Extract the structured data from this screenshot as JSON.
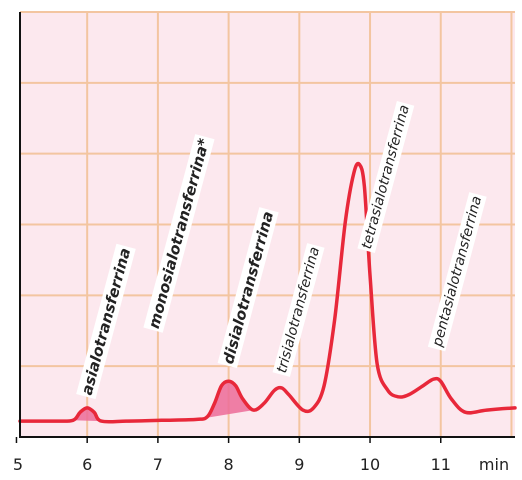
{
  "chart_data": {
    "type": "line",
    "x_unit": "min",
    "x_ticks": [
      "5",
      "6",
      "7",
      "8",
      "9",
      "10",
      "11"
    ],
    "xlim": [
      5,
      12
    ],
    "ylim": [
      0,
      1
    ],
    "grid": true,
    "colors": {
      "background": "#fce8ee",
      "grid": "#f3c5a0",
      "line": "#e8283a",
      "fill": "#ec6b98",
      "axis": "#111111"
    },
    "series": [
      {
        "points": [
          [
            5.0,
            0.02
          ],
          [
            5.5,
            0.02
          ],
          [
            5.75,
            0.022
          ],
          [
            5.85,
            0.04
          ],
          [
            5.95,
            0.05
          ],
          [
            6.05,
            0.04
          ],
          [
            6.15,
            0.02
          ],
          [
            6.5,
            0.02
          ],
          [
            7.0,
            0.022
          ],
          [
            7.5,
            0.024
          ],
          [
            7.65,
            0.03
          ],
          [
            7.75,
            0.06
          ],
          [
            7.85,
            0.1
          ],
          [
            7.95,
            0.11
          ],
          [
            8.05,
            0.1
          ],
          [
            8.15,
            0.07
          ],
          [
            8.3,
            0.045
          ],
          [
            8.45,
            0.06
          ],
          [
            8.6,
            0.09
          ],
          [
            8.7,
            0.095
          ],
          [
            8.8,
            0.08
          ],
          [
            9.0,
            0.045
          ],
          [
            9.15,
            0.05
          ],
          [
            9.3,
            0.1
          ],
          [
            9.45,
            0.25
          ],
          [
            9.6,
            0.47
          ],
          [
            9.72,
            0.58
          ],
          [
            9.8,
            0.6
          ],
          [
            9.87,
            0.55
          ],
          [
            9.95,
            0.35
          ],
          [
            10.05,
            0.15
          ],
          [
            10.2,
            0.09
          ],
          [
            10.35,
            0.075
          ],
          [
            10.5,
            0.08
          ],
          [
            10.7,
            0.1
          ],
          [
            10.85,
            0.115
          ],
          [
            10.95,
            0.11
          ],
          [
            11.1,
            0.07
          ],
          [
            11.3,
            0.04
          ],
          [
            11.6,
            0.045
          ],
          [
            12.0,
            0.05
          ]
        ]
      }
    ],
    "peak_labels": [
      {
        "text": "asialotransferrina",
        "x": 5.95,
        "y": 0.05,
        "bold": true
      },
      {
        "text": "monosialotransferrina*",
        "x": 6.9,
        "y": 0.2,
        "bold": true
      },
      {
        "text": "disialotransferrina",
        "x": 7.95,
        "y": 0.12,
        "bold": true
      },
      {
        "text": "trisialotransferrina",
        "x": 8.7,
        "y": 0.1,
        "bold": false
      },
      {
        "text": "tetrasialotransferrina",
        "x": 9.9,
        "y": 0.38,
        "bold": false
      },
      {
        "text": "pentasialotransferrina",
        "x": 10.9,
        "y": 0.16,
        "bold": false
      }
    ]
  }
}
